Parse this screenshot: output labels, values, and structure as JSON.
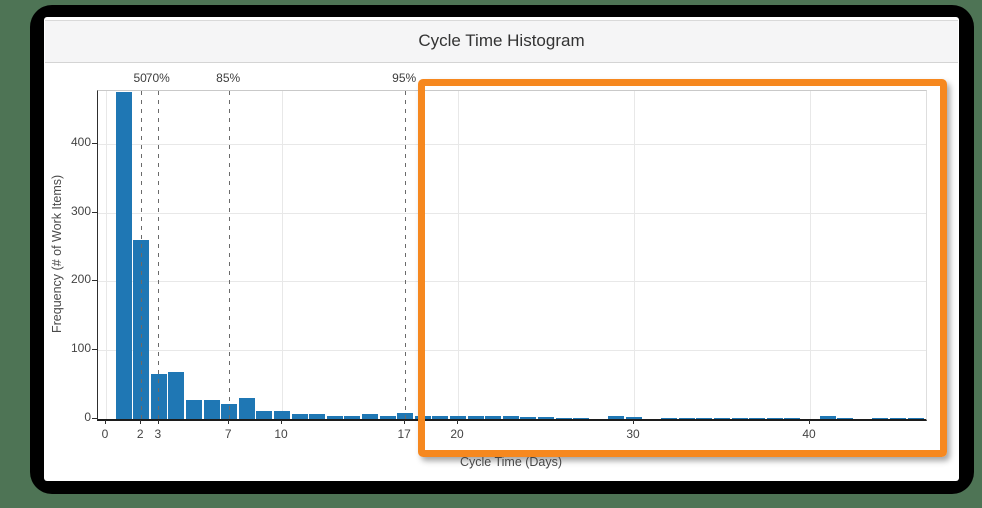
{
  "window": {
    "title": "Cycle Time Histogram"
  },
  "chart_data": {
    "type": "bar",
    "title": "Cycle Time Histogram",
    "xlabel": "Cycle Time (Days)",
    "ylabel": "Frequency (# of Work Items)",
    "x_start_day": 1,
    "values": [
      475,
      260,
      65,
      69,
      27,
      27,
      22,
      31,
      12,
      12,
      8,
      7,
      5,
      5,
      7,
      4,
      9,
      4,
      4,
      4,
      4,
      4,
      4,
      3,
      3,
      2,
      2,
      0,
      5,
      3,
      0,
      2,
      2,
      2,
      2,
      2,
      2,
      2,
      2,
      0,
      4,
      2,
      0,
      2,
      2,
      2
    ],
    "xticks": [
      0,
      2,
      3,
      7,
      10,
      17,
      20,
      30,
      40
    ],
    "yticks": [
      0,
      100,
      200,
      300,
      400
    ],
    "x_gridlines": [
      0,
      10,
      20,
      30,
      40
    ],
    "xlim": [
      -0.5,
      46.6
    ],
    "ylim": [
      0,
      477
    ],
    "grid": true,
    "legend_position": "none",
    "bar_color": "#1f77b4",
    "percentile_lines": [
      {
        "label": "50",
        "day": 2
      },
      {
        "label": "70%",
        "day": 3
      },
      {
        "label": "85%",
        "day": 7
      },
      {
        "label": "95%",
        "day": 17
      }
    ]
  },
  "annotation_box": {
    "shape": "rectangle",
    "color": "#f6881f"
  }
}
